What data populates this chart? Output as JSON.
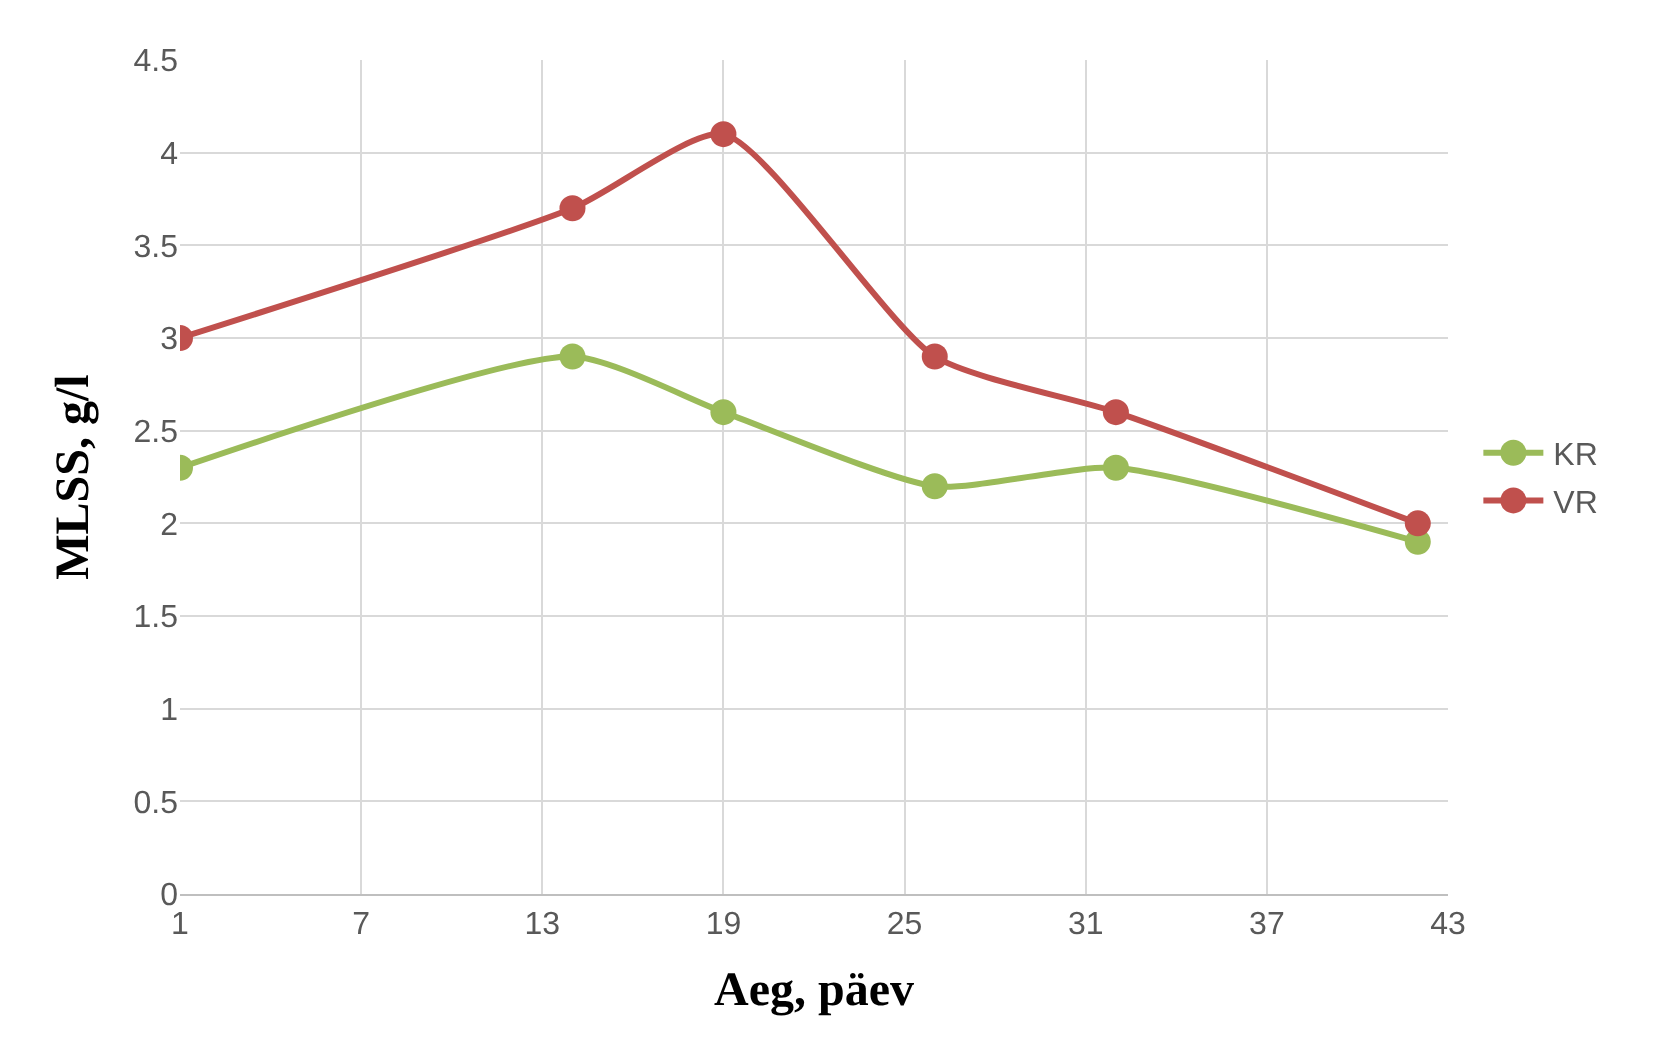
{
  "chart_data": {
    "type": "line",
    "xlabel": "Aeg, päev",
    "ylabel": "MLSS, g/l",
    "x": [
      1,
      14,
      19,
      26,
      32,
      42
    ],
    "series": [
      {
        "name": "KR",
        "color": "#9bbb59",
        "values": [
          2.3,
          2.9,
          2.6,
          2.2,
          2.3,
          1.9
        ]
      },
      {
        "name": "VR",
        "color": "#c0504d",
        "values": [
          3.0,
          3.7,
          4.1,
          2.9,
          2.6,
          2.0
        ]
      }
    ],
    "xlim": [
      1,
      43
    ],
    "xticks": [
      1,
      7,
      13,
      19,
      25,
      31,
      37,
      43
    ],
    "ylim": [
      0,
      4.5
    ],
    "yticks": [
      0,
      0.5,
      1,
      1.5,
      2,
      2.5,
      3,
      3.5,
      4,
      4.5
    ],
    "grid": true,
    "legend": "right",
    "marker": "circle",
    "line_style": "solid"
  }
}
